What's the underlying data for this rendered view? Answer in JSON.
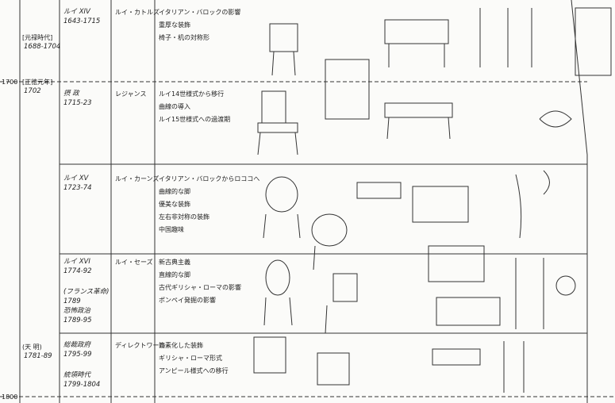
{
  "years": [
    "1700",
    "1800"
  ],
  "eras": [
    {
      "label": "[元禄時代]",
      "years": "1688-1704"
    },
    {
      "label": "[正徳元年]",
      "years": "1702"
    },
    {
      "label": "(天 明)",
      "years": "1781-89"
    }
  ],
  "rows": [
    {
      "period": [
        "ルイ XIV",
        "1643-1715"
      ],
      "style": "ルイ・カトルズ",
      "notes": [
        "イタリアン・バロックの影響",
        "重厚な装飾",
        "椅子・机の対称形"
      ]
    },
    {
      "period": [
        "摂 政",
        "1715-23"
      ],
      "style": "レジャンス",
      "notes": [
        "ルイ14世様式から移行",
        "曲線の導入",
        "ルイ15世様式への過渡期"
      ]
    },
    {
      "period": [
        "ルイ XV",
        "1723-74"
      ],
      "style": "ルイ・カーンズ",
      "notes": [
        "イタリアン・バロックからロココへ",
        "曲線的な脚",
        "優美な装飾",
        "左右非対称の装飾",
        "中国趣味"
      ]
    },
    {
      "period": [
        "ルイ XVI",
        "1774-92",
        "(フランス革命)",
        "1789",
        "恐怖政治",
        "1789-95"
      ],
      "style": "ルイ・セーズ",
      "notes": [
        "新古典主義",
        "直線的な脚",
        "古代ギリシャ・ローマの影響",
        "ポンペイ発掘の影響"
      ]
    },
    {
      "period": [
        "総裁政府",
        "1795-99",
        "統領時代",
        "1799-1804"
      ],
      "style": "ディレクトワール",
      "notes": [
        "簡素化した装飾",
        "ギリシャ・ローマ形式",
        "アンピール様式への移行"
      ]
    }
  ]
}
